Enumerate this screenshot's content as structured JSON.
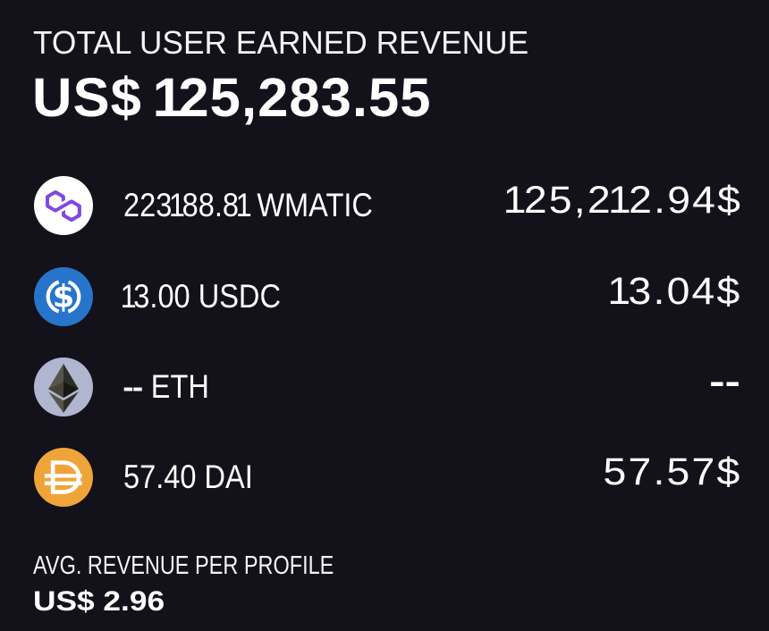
{
  "card": {
    "title": "TOTAL USER EARNED REVENUE",
    "total": "US$ 125,283.55",
    "rows": [
      {
        "icon": "polygon-icon",
        "amount": "223188.81 WMATIC",
        "value": "125,212.94$"
      },
      {
        "icon": "usdc-icon",
        "amount": "13.00 USDC",
        "value": "13.04$"
      },
      {
        "icon": "eth-icon",
        "amount": "-- ETH",
        "value": "--"
      },
      {
        "icon": "dai-icon",
        "amount": "57.40 DAI",
        "value": "57.57$"
      }
    ],
    "footer_label": "AVG. REVENUE PER PROFILE",
    "footer_value": "US$ 2.96",
    "colors": {
      "bg": "#131119",
      "polygon": "#8247E5",
      "usdc": "#2775CA",
      "ethbg": "#b0b5d0",
      "dai": "#EFA43A",
      "text": "#ffffff"
    }
  }
}
